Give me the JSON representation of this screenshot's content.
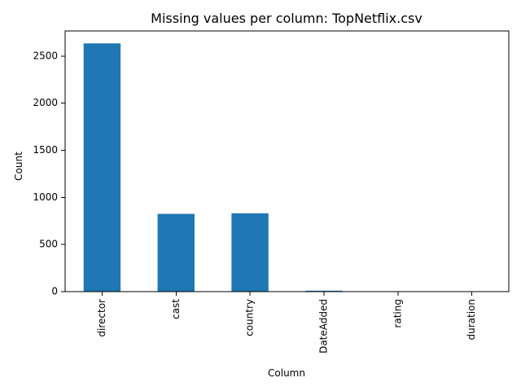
{
  "chart_data": {
    "type": "bar",
    "title": "Missing values per column: TopNetflix.csv",
    "xlabel": "Column",
    "ylabel": "Count",
    "categories": [
      "director",
      "cast",
      "country",
      "DateAdded",
      "rating",
      "duration"
    ],
    "values": [
      2634,
      825,
      831,
      10,
      4,
      3
    ],
    "ylim": [
      0,
      2766
    ],
    "yticks": [
      0,
      500,
      1000,
      1500,
      2000,
      2500
    ],
    "grid": false,
    "legend": "none",
    "colors": {
      "bar": "#1f77b4",
      "axis": "#000000",
      "background": "#ffffff"
    }
  }
}
